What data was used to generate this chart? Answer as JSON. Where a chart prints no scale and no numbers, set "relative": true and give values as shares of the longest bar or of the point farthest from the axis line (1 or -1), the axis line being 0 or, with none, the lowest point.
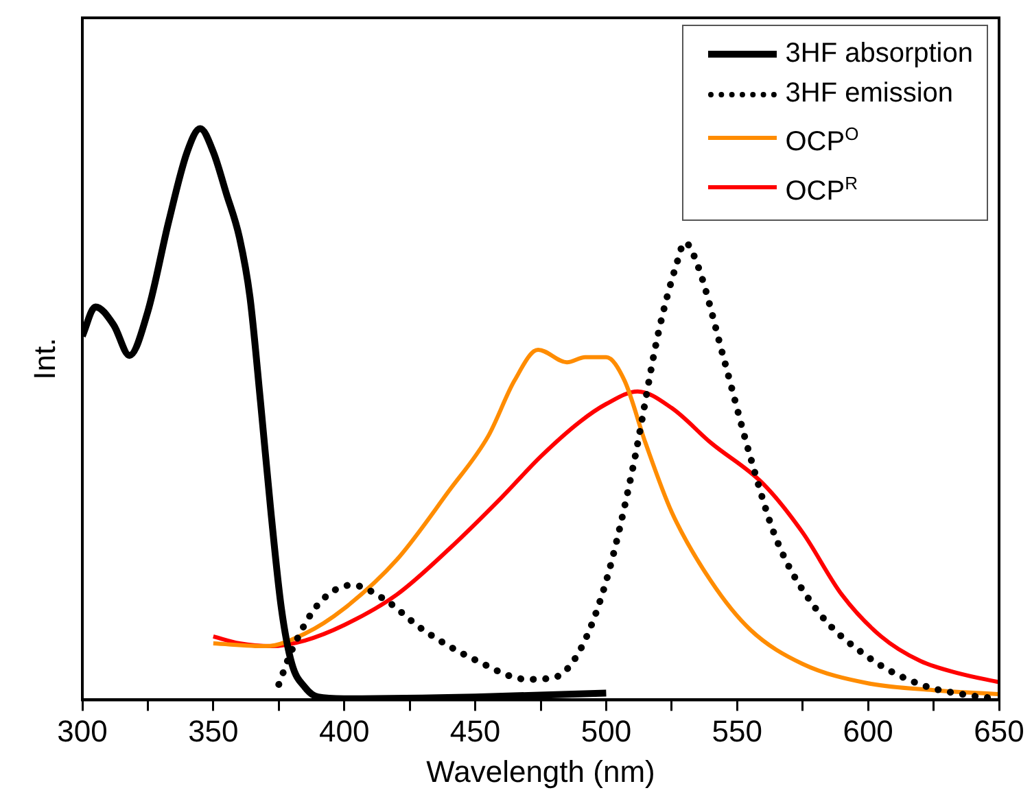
{
  "chart_data": {
    "type": "line",
    "xlabel": "Wavelength (nm)",
    "ylabel": "Int.",
    "relative": true,
    "legend": "top right",
    "xlim": [
      300,
      650
    ],
    "xticks": [
      300,
      {
        "value": 325,
        "label": null
      },
      350,
      {
        "value": 375,
        "label": null
      },
      400,
      {
        "value": 425,
        "label": null
      },
      450,
      {
        "value": 475,
        "label": null
      },
      500,
      {
        "value": 525,
        "label": null
      },
      550,
      {
        "value": 575,
        "label": null
      },
      600,
      {
        "value": 625,
        "label": null
      },
      650
    ],
    "series": [
      {
        "name": "3HF absorption",
        "color": "#000000",
        "line_style": "solid",
        "x": [
          300,
          305,
          312,
          318,
          325,
          333,
          340,
          345,
          350,
          355,
          360,
          364,
          368,
          372,
          376,
          380,
          385,
          390,
          400,
          450,
          500
        ],
        "values": [
          0.637,
          0.688,
          0.656,
          0.603,
          0.68,
          0.838,
          0.959,
          1,
          0.959,
          0.886,
          0.809,
          0.705,
          0.523,
          0.329,
          0.16,
          0.063,
          0.022,
          0.005,
          0.002,
          0.005,
          0.012
        ]
      },
      {
        "name": "3HF emission",
        "color": "#000000",
        "line_style": "dotted",
        "x": [
          375,
          380,
          390,
          403,
          415,
          430,
          450,
          470,
          480,
          490,
          500,
          510,
          520,
          527,
          530,
          535,
          545,
          555,
          565,
          580,
          600,
          620,
          640,
          650
        ],
        "values": [
          0.027,
          0.087,
          0.167,
          0.201,
          0.177,
          0.123,
          0.07,
          0.036,
          0.039,
          0.087,
          0.208,
          0.402,
          0.644,
          0.765,
          0.801,
          0.76,
          0.596,
          0.426,
          0.281,
          0.16,
          0.075,
          0.027,
          0.007,
          0.002
        ]
      },
      {
        "name": "OCP$^{O}$",
        "color": "#ff8c00",
        "line_style": "solid",
        "x": [
          350,
          370,
          385,
          400,
          420,
          440,
          455,
          465,
          474,
          485,
          492,
          500,
          507,
          515,
          525,
          540,
          555,
          575,
          600,
          625,
          650
        ],
        "values": [
          0.099,
          0.094,
          0.116,
          0.16,
          0.245,
          0.366,
          0.462,
          0.559,
          0.613,
          0.591,
          0.6,
          0.6,
          0.559,
          0.45,
          0.329,
          0.208,
          0.123,
          0.063,
          0.029,
          0.017,
          0.01
        ]
      },
      {
        "name": "OCP$^{R}$",
        "color": "#ff0000",
        "line_style": "solid",
        "x": [
          350,
          360,
          372,
          385,
          400,
          420,
          440,
          460,
          475,
          490,
          500,
          512,
          525,
          540,
          560,
          575,
          590,
          605,
          620,
          635,
          650
        ],
        "values": [
          0.111,
          0.099,
          0.094,
          0.104,
          0.131,
          0.184,
          0.264,
          0.354,
          0.426,
          0.487,
          0.518,
          0.54,
          0.511,
          0.45,
          0.378,
          0.293,
          0.184,
          0.111,
          0.068,
          0.046,
          0.031
        ]
      }
    ]
  }
}
